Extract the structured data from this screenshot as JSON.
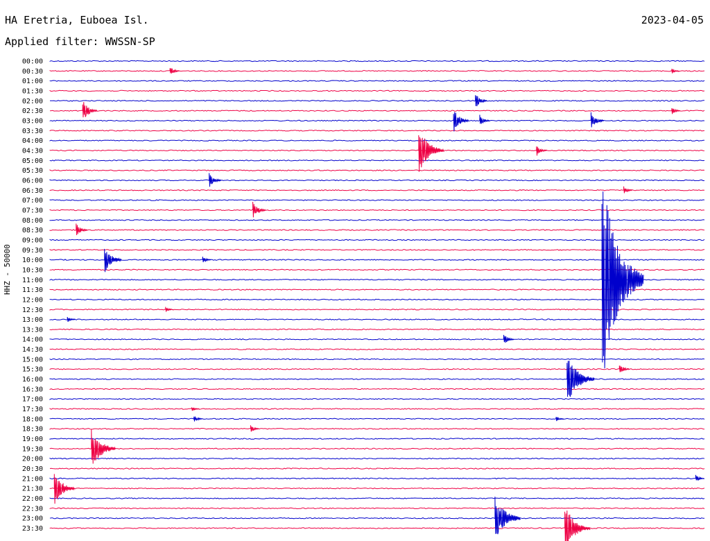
{
  "header": {
    "station": "HA Eretria, Euboea Isl.",
    "date": "2023-04-05",
    "filter": "Applied filter: WWSSN-SP"
  },
  "channel_label": "HHZ - 50000",
  "colors": {
    "even": "#0000cc",
    "odd": "#ee0044"
  },
  "chart_data": {
    "type": "line",
    "subtype": "helicorder",
    "row_labels": [
      "00:00",
      "00:30",
      "01:00",
      "01:30",
      "02:00",
      "02:30",
      "03:00",
      "03:30",
      "04:00",
      "04:30",
      "05:00",
      "05:30",
      "06:00",
      "06:30",
      "07:00",
      "07:30",
      "08:00",
      "08:30",
      "09:00",
      "09:30",
      "10:00",
      "10:30",
      "11:00",
      "11:30",
      "12:00",
      "12:30",
      "13:00",
      "13:30",
      "14:00",
      "14:30",
      "15:00",
      "15:30",
      "16:00",
      "16:30",
      "17:00",
      "17:30",
      "18:00",
      "18:30",
      "19:00",
      "19:30",
      "20:00",
      "20:30",
      "21:00",
      "21:30",
      "22:00",
      "22:30",
      "23:00",
      "23:30"
    ],
    "row_minutes": 30,
    "events": [
      {
        "row": 1,
        "minute": 5.5,
        "amp": 0.5
      },
      {
        "row": 1,
        "minute": 28.5,
        "amp": 0.3
      },
      {
        "row": 4,
        "minute": 19.5,
        "amp": 0.8
      },
      {
        "row": 5,
        "minute": 1.5,
        "amp": 1.1
      },
      {
        "row": 5,
        "minute": 28.5,
        "amp": 0.4
      },
      {
        "row": 6,
        "minute": 18.5,
        "amp": 1.2
      },
      {
        "row": 6,
        "minute": 19.7,
        "amp": 0.6
      },
      {
        "row": 6,
        "minute": 24.8,
        "amp": 0.9
      },
      {
        "row": 9,
        "minute": 16.9,
        "amp": 2.4
      },
      {
        "row": 9,
        "minute": 22.3,
        "amp": 0.6
      },
      {
        "row": 12,
        "minute": 7.3,
        "amp": 0.8
      },
      {
        "row": 13,
        "minute": 26.3,
        "amp": 0.4
      },
      {
        "row": 15,
        "minute": 9.3,
        "amp": 0.9
      },
      {
        "row": 17,
        "minute": 1.2,
        "amp": 0.7
      },
      {
        "row": 20,
        "minute": 2.5,
        "amp": 1.4
      },
      {
        "row": 20,
        "minute": 7.0,
        "amp": 0.4
      },
      {
        "row": 22,
        "minute": 25.3,
        "amp": 11.0
      },
      {
        "row": 25,
        "minute": 5.3,
        "amp": 0.3
      },
      {
        "row": 26,
        "minute": 0.8,
        "amp": 0.3
      },
      {
        "row": 28,
        "minute": 20.8,
        "amp": 0.6
      },
      {
        "row": 31,
        "minute": 26.1,
        "amp": 0.6
      },
      {
        "row": 32,
        "minute": 23.7,
        "amp": 2.6
      },
      {
        "row": 35,
        "minute": 6.5,
        "amp": 0.3
      },
      {
        "row": 36,
        "minute": 6.6,
        "amp": 0.4
      },
      {
        "row": 36,
        "minute": 23.2,
        "amp": 0.3
      },
      {
        "row": 37,
        "minute": 9.2,
        "amp": 0.4
      },
      {
        "row": 39,
        "minute": 1.9,
        "amp": 2.2
      },
      {
        "row": 42,
        "minute": 29.6,
        "amp": 0.4
      },
      {
        "row": 43,
        "minute": 0.2,
        "amp": 1.8
      },
      {
        "row": 46,
        "minute": 20.4,
        "amp": 2.4
      },
      {
        "row": 47,
        "minute": 23.6,
        "amp": 2.4
      }
    ]
  }
}
